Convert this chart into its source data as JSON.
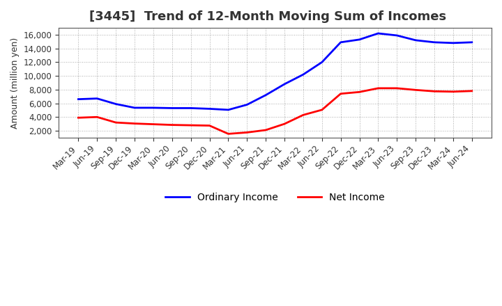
{
  "title": "[3445]  Trend of 12-Month Moving Sum of Incomes",
  "ylabel": "Amount (million yen)",
  "x_labels": [
    "Mar-19",
    "Jun-19",
    "Sep-19",
    "Dec-19",
    "Mar-20",
    "Jun-20",
    "Sep-20",
    "Dec-20",
    "Mar-21",
    "Jun-21",
    "Sep-21",
    "Dec-21",
    "Mar-22",
    "Jun-22",
    "Sep-22",
    "Dec-22",
    "Mar-23",
    "Jun-23",
    "Sep-23",
    "Dec-23",
    "Mar-24",
    "Jun-24"
  ],
  "ordinary_income": [
    6600,
    6700,
    5900,
    5350,
    5350,
    5300,
    5300,
    5200,
    5050,
    5800,
    7200,
    8800,
    10200,
    12000,
    14900,
    15300,
    16200,
    15900,
    15200,
    14900,
    14800,
    14900
  ],
  "net_income": [
    3900,
    4000,
    3200,
    3050,
    2950,
    2850,
    2800,
    2750,
    1550,
    1750,
    2100,
    3000,
    4300,
    5050,
    7400,
    7650,
    8200,
    8200,
    7950,
    7750,
    7700,
    7800
  ],
  "ordinary_color": "#0000ff",
  "net_color": "#ff0000",
  "line_width": 2.0,
  "background_color": "#ffffff",
  "plot_bg_color": "#ffffff",
  "grid_color": "#aaaaaa",
  "ylim": [
    1000,
    17000
  ],
  "yticks": [
    2000,
    4000,
    6000,
    8000,
    10000,
    12000,
    14000,
    16000
  ],
  "title_fontsize": 13,
  "label_fontsize": 9,
  "tick_fontsize": 8.5,
  "legend_labels": [
    "Ordinary Income",
    "Net Income"
  ],
  "title_color": "#333333"
}
